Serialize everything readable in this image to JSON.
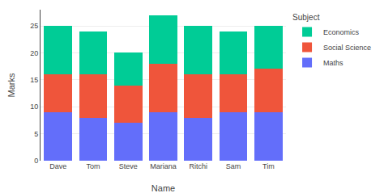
{
  "chart_data": {
    "type": "bar",
    "stacked": true,
    "xlabel": "Name",
    "ylabel": "Marks",
    "legend_title": "Subject",
    "categories": [
      "Dave",
      "Tom",
      "Steve",
      "Mariana",
      "Ritchi",
      "Sam",
      "Tim"
    ],
    "series": [
      {
        "name": "Maths",
        "color": "#636efa",
        "values": [
          9,
          8,
          7,
          9,
          8,
          9,
          9
        ]
      },
      {
        "name": "Social Science",
        "color": "#ef553b",
        "values": [
          7,
          8,
          7,
          9,
          8,
          7,
          8
        ]
      },
      {
        "name": "Economics",
        "color": "#00cc96",
        "values": [
          9,
          8,
          6,
          9,
          9,
          8,
          8
        ]
      }
    ],
    "ylim": [
      0,
      28
    ],
    "yticks": [
      0,
      5,
      10,
      15,
      20,
      25
    ],
    "grid": true,
    "legend": "right"
  }
}
